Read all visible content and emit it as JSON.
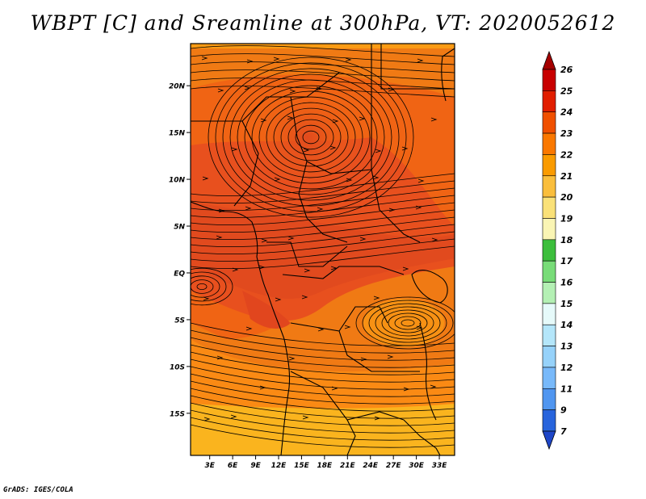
{
  "title": "WBPT [C] and Sreamline at 300hPa, VT: 2020052612",
  "footer": "GrADS: IGES/COLA",
  "map": {
    "lat_labels": [
      "20N",
      "15N",
      "10N",
      "5N",
      "EQ",
      "5S",
      "10S",
      "15S"
    ],
    "lat_values": [
      20,
      15,
      10,
      5,
      0,
      -5,
      -10,
      -15
    ],
    "lon_labels": [
      "3E",
      "6E",
      "9E",
      "12E",
      "15E",
      "18E",
      "21E",
      "24E",
      "27E",
      "30E",
      "33E"
    ],
    "lon_values": [
      3,
      6,
      9,
      12,
      15,
      18,
      21,
      24,
      27,
      30,
      33
    ],
    "lat_range": [
      -19.5,
      24.5
    ],
    "lon_range": [
      0.5,
      35
    ]
  },
  "colorbar": {
    "labels": [
      "26",
      "25",
      "24",
      "23",
      "22",
      "21",
      "20",
      "19",
      "18",
      "17",
      "16",
      "15",
      "14",
      "13",
      "12",
      "11",
      "9",
      "7"
    ],
    "colors": [
      "#a50000",
      "#c80000",
      "#e11e00",
      "#f05000",
      "#fa7800",
      "#fa9b00",
      "#fabe3c",
      "#fae178",
      "#faf5b4",
      "#3cbe3c",
      "#78dc78",
      "#b4f0b4",
      "#e6fafa",
      "#b4e6fa",
      "#96d2fa",
      "#78b9fa",
      "#5096f0",
      "#2864dc",
      "#1e46c8"
    ]
  },
  "colors": {
    "ocean_orange": "#fa9b14",
    "land_deep": "#f06414"
  }
}
